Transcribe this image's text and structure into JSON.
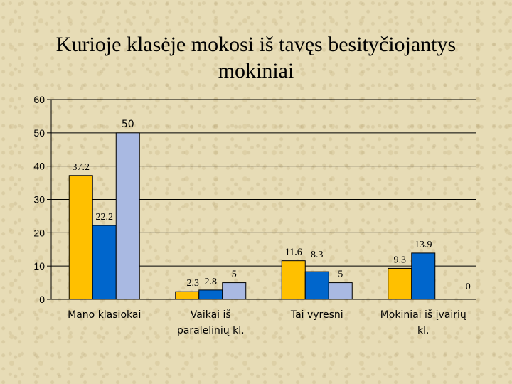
{
  "chart_data": {
    "type": "bar",
    "title_line1": "Kurioje klasėje mokosi iš tavęs besityčiojantys",
    "title_line2": "mokiniai",
    "categories": [
      [
        "Mano klasiokai"
      ],
      [
        "Vaikai iš",
        "paralelinių kl."
      ],
      [
        "Tai vyresni"
      ],
      [
        "Mokiniai iš įvairių",
        "kl."
      ]
    ],
    "series": [
      {
        "color": "#ffc000",
        "values": [
          37.2,
          2.3,
          11.6,
          9.3
        ]
      },
      {
        "color": "#0066cc",
        "values": [
          22.2,
          2.8,
          8.3,
          13.9
        ]
      },
      {
        "color": "#a9b9e2",
        "values": [
          50,
          5,
          5,
          0
        ]
      }
    ],
    "data_labels": [
      [
        "37.2",
        "2.3",
        "11.6",
        "9.3"
      ],
      [
        "22.2",
        "2.8",
        "8.3",
        "13.9"
      ],
      [
        "50",
        "5",
        "5",
        "0"
      ]
    ],
    "yticks": [
      "0",
      "10",
      "20",
      "30",
      "40",
      "50",
      "60"
    ],
    "ylim": [
      0,
      60
    ],
    "grid": true,
    "legend": "none"
  }
}
